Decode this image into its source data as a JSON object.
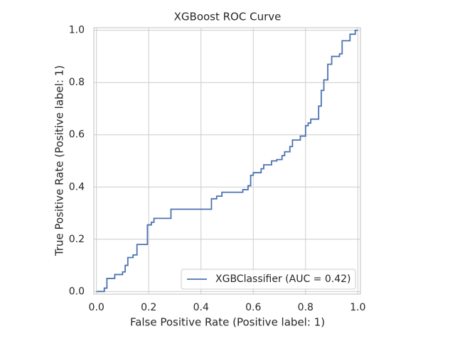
{
  "chart_data": {
    "type": "line",
    "title": "XGBoost ROC Curve",
    "x_label": "False Positive Rate (Positive label: 1)",
    "y_label": "True Positive Rate (Positive label: 1)",
    "x": [
      0,
      0.03,
      0.03,
      0.04,
      0.04,
      0.07,
      0.07,
      0.1,
      0.1,
      0.11,
      0.11,
      0.12,
      0.12,
      0.14,
      0.14,
      0.155,
      0.155,
      0.195,
      0.195,
      0.21,
      0.21,
      0.22,
      0.22,
      0.285,
      0.285,
      0.44,
      0.44,
      0.46,
      0.46,
      0.48,
      0.48,
      0.56,
      0.56,
      0.58,
      0.58,
      0.59,
      0.59,
      0.6,
      0.6,
      0.63,
      0.63,
      0.64,
      0.64,
      0.67,
      0.67,
      0.69,
      0.69,
      0.71,
      0.71,
      0.72,
      0.72,
      0.74,
      0.74,
      0.75,
      0.75,
      0.78,
      0.78,
      0.8,
      0.8,
      0.81,
      0.81,
      0.82,
      0.82,
      0.85,
      0.85,
      0.86,
      0.86,
      0.87,
      0.87,
      0.885,
      0.885,
      0.9,
      0.9,
      0.93,
      0.93,
      0.94,
      0.94,
      0.97,
      0.97,
      0.99,
      0.99,
      1
    ],
    "series": [
      {
        "name": "XGBClassifier (AUC = 0.42)",
        "color": "#4c72b0",
        "values": [
          0,
          0,
          0.013,
          0.013,
          0.05,
          0.05,
          0.065,
          0.065,
          0.075,
          0.075,
          0.1,
          0.1,
          0.13,
          0.13,
          0.14,
          0.14,
          0.18,
          0.18,
          0.255,
          0.255,
          0.265,
          0.265,
          0.28,
          0.28,
          0.315,
          0.315,
          0.355,
          0.355,
          0.365,
          0.365,
          0.38,
          0.38,
          0.39,
          0.39,
          0.405,
          0.405,
          0.445,
          0.445,
          0.455,
          0.455,
          0.47,
          0.47,
          0.485,
          0.485,
          0.5,
          0.5,
          0.505,
          0.505,
          0.52,
          0.52,
          0.535,
          0.535,
          0.555,
          0.555,
          0.58,
          0.58,
          0.595,
          0.595,
          0.635,
          0.635,
          0.645,
          0.645,
          0.66,
          0.66,
          0.71,
          0.71,
          0.77,
          0.77,
          0.81,
          0.81,
          0.87,
          0.87,
          0.9,
          0.9,
          0.91,
          0.91,
          0.96,
          0.96,
          0.985,
          0.985,
          1,
          1
        ]
      }
    ],
    "xlim": [
      -0.01,
      1.01
    ],
    "ylim": [
      -0.01,
      1.01
    ],
    "xticks": [
      {
        "value": 0,
        "label": "0.0"
      },
      0.2,
      0.4,
      0.6,
      0.8,
      {
        "value": 1,
        "label": "1.0"
      }
    ],
    "yticks": [
      {
        "value": 0,
        "label": "0.0"
      },
      0.2,
      0.4,
      0.6,
      0.8,
      {
        "value": 1,
        "label": "1.0"
      }
    ],
    "grid": true,
    "legend": "lower right"
  }
}
